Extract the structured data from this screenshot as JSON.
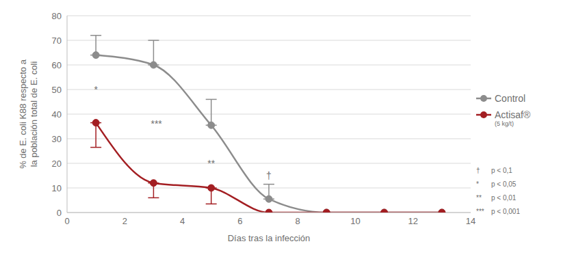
{
  "chart_data": {
    "type": "line",
    "xlabel": "Días tras la infección",
    "ylabel": "% de E. coli K88 respecto a la población total de E. coli",
    "x": [
      1,
      3,
      5,
      7,
      9,
      11,
      13
    ],
    "series": [
      {
        "name": "Control",
        "color": "#8c8c8c",
        "marker": "circle",
        "values": [
          64,
          60,
          35.5,
          5.5,
          0,
          0,
          0
        ],
        "error": [
          [
            0,
            8
          ],
          [
            0,
            10
          ],
          [
            0,
            10.5
          ],
          [
            0,
            6
          ],
          null,
          null,
          null
        ]
      },
      {
        "name": "Actisaf®",
        "legend_note": "(5 kg/t)",
        "color": "#a31e22",
        "marker": "circle",
        "values": [
          36.5,
          12,
          10,
          0,
          0,
          0,
          0
        ],
        "error": [
          [
            10,
            0
          ],
          [
            6,
            0
          ],
          [
            6.5,
            0
          ],
          null,
          null,
          null,
          null
        ]
      }
    ],
    "xlim": [
      0,
      14
    ],
    "xticks": [
      0,
      2,
      4,
      6,
      8,
      10,
      12,
      14
    ],
    "ylim": [
      0,
      80
    ],
    "yticks": [
      0,
      10,
      20,
      30,
      40,
      50,
      60,
      70,
      80
    ],
    "grid": true,
    "legend": "right",
    "annotations": [
      {
        "text": "*",
        "x": 1,
        "y": 50
      },
      {
        "text": "***",
        "x": 3.1,
        "y": 36
      },
      {
        "text": "**",
        "x": 5,
        "y": 20
      },
      {
        "text": "†",
        "x": 7,
        "y": 15
      }
    ],
    "significance_key": [
      {
        "symbol": "†",
        "text": "p < 0,1"
      },
      {
        "symbol": "*",
        "text": "p < 0,05"
      },
      {
        "symbol": "**",
        "text": "p < 0,01"
      },
      {
        "symbol": "***",
        "text": "p < 0,001"
      }
    ]
  }
}
